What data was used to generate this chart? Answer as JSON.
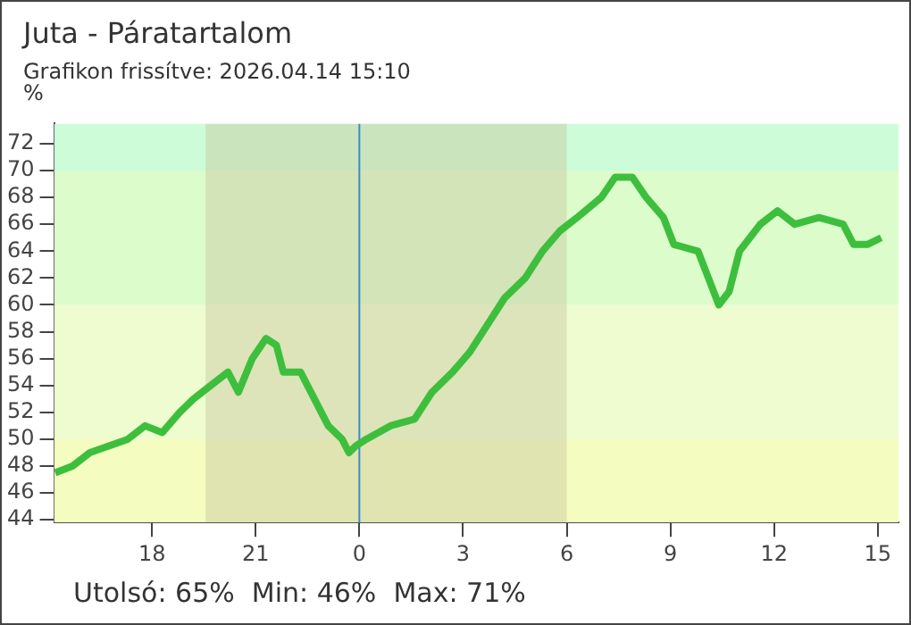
{
  "chart_data": {
    "type": "line",
    "title": "Juta - Páratartalom",
    "subtitle": "Grafikon frissítve: 2026.04.14 15:10",
    "ylabel": "%",
    "annotations": [
      "Utolsó: 65%  Min: 46%  Max: 71%"
    ],
    "x": [
      "2026-04-13T15:12",
      "2026-04-13T15:42",
      "2026-04-13T16:12",
      "2026-04-13T17:18",
      "2026-04-13T17:48",
      "2026-04-13T18:18",
      "2026-04-13T18:48",
      "2026-04-13T19:12",
      "2026-04-13T19:42",
      "2026-04-13T20:12",
      "2026-04-13T20:30",
      "2026-04-13T20:54",
      "2026-04-13T21:18",
      "2026-04-13T21:36",
      "2026-04-13T21:48",
      "2026-04-13T22:18",
      "2026-04-13T22:42",
      "2026-04-13T23:06",
      "2026-04-13T23:30",
      "2026-04-13T23:42",
      "2026-04-13T23:54",
      "2026-04-14T00:12",
      "2026-04-14T00:54",
      "2026-04-14T01:36",
      "2026-04-14T02:06",
      "2026-04-14T02:42",
      "2026-04-14T03:12",
      "2026-04-14T03:42",
      "2026-04-14T04:12",
      "2026-04-14T04:48",
      "2026-04-14T05:18",
      "2026-04-14T05:48",
      "2026-04-14T06:18",
      "2026-04-14T07:00",
      "2026-04-14T07:24",
      "2026-04-14T07:54",
      "2026-04-14T08:18",
      "2026-04-14T08:48",
      "2026-04-14T09:06",
      "2026-04-14T09:48",
      "2026-04-14T10:06",
      "2026-04-14T10:24",
      "2026-04-14T10:42",
      "2026-04-14T11:00",
      "2026-04-14T11:36",
      "2026-04-14T12:06",
      "2026-04-14T12:36",
      "2026-04-14T13:18",
      "2026-04-14T14:00",
      "2026-04-14T14:18",
      "2026-04-14T14:42",
      "2026-04-14T15:06"
    ],
    "series": [
      {
        "color": "#3dbf3d",
        "values": [
          47.5,
          48,
          49,
          50,
          51,
          50.5,
          52,
          53,
          54,
          55,
          53.5,
          56,
          57.5,
          57,
          55,
          55,
          53,
          51,
          50,
          49,
          49.5,
          50,
          51,
          51.5,
          53.5,
          55,
          56.5,
          58.5,
          60.5,
          62,
          64,
          65.5,
          66.5,
          68,
          69.5,
          69.5,
          68,
          66.5,
          64.5,
          64,
          62,
          60,
          61,
          64,
          66,
          67,
          66,
          66.5,
          66,
          64.5,
          64.5,
          65
        ]
      }
    ],
    "xlim": [
      "2026-04-13T15:10",
      "2026-04-14T15:36"
    ],
    "xticks": [
      {
        "value": "2026-04-13T18:00",
        "label": "18"
      },
      {
        "value": "2026-04-13T21:00",
        "label": "21"
      },
      {
        "value": "2026-04-14T00:00",
        "label": "0"
      },
      {
        "value": "2026-04-14T03:00",
        "label": "3"
      },
      {
        "value": "2026-04-14T06:00",
        "label": "6"
      },
      {
        "value": "2026-04-14T09:00",
        "label": "9"
      },
      {
        "value": "2026-04-14T12:00",
        "label": "12"
      },
      {
        "value": "2026-04-14T15:00",
        "label": "15"
      }
    ],
    "ylim": [
      43.8,
      73.5
    ],
    "yticks": [
      44,
      46,
      48,
      50,
      52,
      54,
      56,
      58,
      60,
      62,
      64,
      66,
      68,
      70,
      72
    ],
    "bands": [
      {
        "axis": "y",
        "from": 43.8,
        "to": 50,
        "color": "#f5fcc0"
      },
      {
        "axis": "y",
        "from": 50,
        "to": 60,
        "color": "#eefccf"
      },
      {
        "axis": "y",
        "from": 60,
        "to": 70,
        "color": "#ddfccc"
      },
      {
        "axis": "y",
        "from": 70,
        "to": 73.5,
        "color": "#ccfcd8"
      },
      {
        "axis": "x",
        "from": "2026-04-13T19:33",
        "to": "2026-04-14T06:00",
        "color": "#c8c8a0"
      }
    ],
    "ref_lines": [
      {
        "axis": "x",
        "value": "2026-04-14T00:00",
        "color": "#3a8cc8"
      }
    ],
    "grid": false,
    "legend": false,
    "marker": "none",
    "line_style": "solid"
  }
}
